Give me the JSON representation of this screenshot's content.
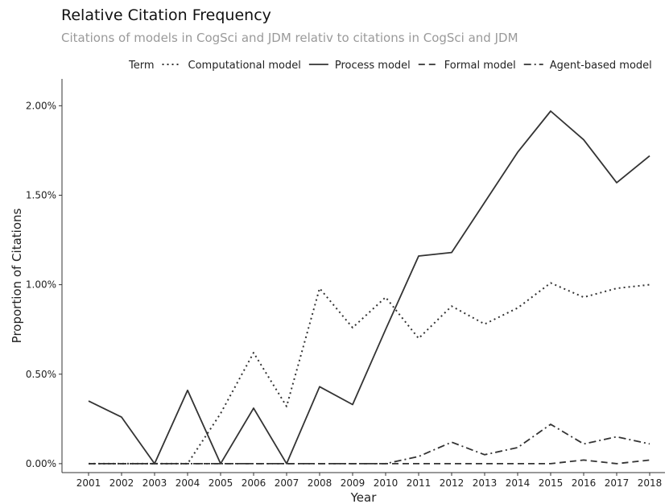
{
  "chart_data": {
    "type": "line",
    "title": "Relative Citation Frequency",
    "subtitle": "Citations of models in CogSci and JDM relativ to citations in CogSci and JDM",
    "xlabel": "Year",
    "ylabel": "Proportion of Citations",
    "legend_title": "Term",
    "legend_position": "top",
    "grid": false,
    "x": [
      "2001",
      "2002",
      "2003",
      "2004",
      "2005",
      "2006",
      "2007",
      "2008",
      "2009",
      "2010",
      "2011",
      "2012",
      "2013",
      "2014",
      "2015",
      "2016",
      "2017",
      "2018"
    ],
    "ylim": [
      -0.0005,
      0.0215
    ],
    "y_ticks": [
      0,
      0.005,
      0.01,
      0.015,
      0.02
    ],
    "y_tick_labels": [
      "0.00%",
      "0.50%",
      "1.00%",
      "1.50%",
      "2.00%"
    ],
    "series": [
      {
        "name": "Computational model",
        "dash": "dotted",
        "values": [
          0,
          0,
          0,
          0,
          0.0028,
          0.0062,
          0.0032,
          0.0098,
          0.0076,
          0.0093,
          0.007,
          0.0088,
          0.0078,
          0.0087,
          0.0101,
          0.0093,
          0.0098,
          0.01
        ]
      },
      {
        "name": "Process model",
        "dash": "solid",
        "values": [
          0.0035,
          0.0026,
          0,
          0.0041,
          0,
          0.0031,
          0,
          0.0043,
          0.0033,
          0.0075,
          0.0116,
          0.0118,
          0.0146,
          0.0174,
          0.0197,
          0.0181,
          0.0157,
          0.0172
        ]
      },
      {
        "name": "Formal model",
        "dash": "dashed",
        "values": [
          0,
          0,
          0,
          0,
          0,
          0,
          0,
          0,
          0,
          0,
          0,
          0,
          0,
          0,
          0,
          0.0002,
          0,
          0.0002
        ]
      },
      {
        "name": "Agent-based model",
        "dash": "dashdot",
        "values": [
          0,
          0,
          0,
          0,
          0,
          0,
          0,
          0,
          0,
          0,
          0.0004,
          0.0012,
          0.0005,
          0.0009,
          0.0022,
          0.0011,
          0.0015,
          0.0011
        ]
      }
    ]
  }
}
